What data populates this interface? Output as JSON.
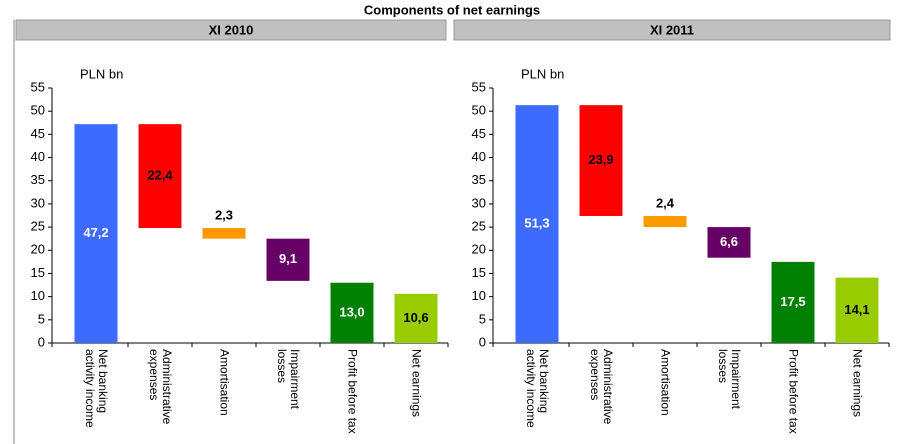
{
  "title": "Components of net earnings",
  "chart_data": [
    {
      "type": "waterfall",
      "title": "XI 2010",
      "ylabel": "PLN bn",
      "categories": [
        "Net banking activity income",
        "Administrative expenses",
        "Amortisation",
        "Impairment losses",
        "Profit before tax",
        "Net earnings"
      ],
      "values": [
        47.2,
        22.4,
        2.3,
        9.1,
        13.0,
        10.6
      ],
      "value_labels": [
        "47,2",
        "22,4",
        "2,3",
        "9,1",
        "13,0",
        "10,6"
      ],
      "measure": [
        "total",
        "decrease",
        "decrease",
        "decrease",
        "total",
        "total"
      ],
      "colors": [
        "#3d6bff",
        "#ff0000",
        "#ff9900",
        "#660066",
        "#008000",
        "#99cc00"
      ],
      "ylim": [
        0,
        55
      ],
      "yticks": [
        0,
        5,
        10,
        15,
        20,
        25,
        30,
        35,
        40,
        45,
        50,
        55
      ]
    },
    {
      "type": "waterfall",
      "title": "XI 2011",
      "ylabel": "PLN bn",
      "categories": [
        "Net banking activity income",
        "Administrative expenses",
        "Amortisation",
        "Impairment losses",
        "Profit before tax",
        "Net earnings"
      ],
      "values": [
        51.3,
        23.9,
        2.4,
        6.6,
        17.5,
        14.1
      ],
      "value_labels": [
        "51,3",
        "23,9",
        "2,4",
        "6,6",
        "17,5",
        "14,1"
      ],
      "measure": [
        "total",
        "decrease",
        "decrease",
        "decrease",
        "total",
        "total"
      ],
      "colors": [
        "#3d6bff",
        "#ff0000",
        "#ff9900",
        "#660066",
        "#008000",
        "#99cc00"
      ],
      "ylim": [
        0,
        55
      ],
      "yticks": [
        0,
        5,
        10,
        15,
        20,
        25,
        30,
        35,
        40,
        45,
        50,
        55
      ]
    }
  ]
}
